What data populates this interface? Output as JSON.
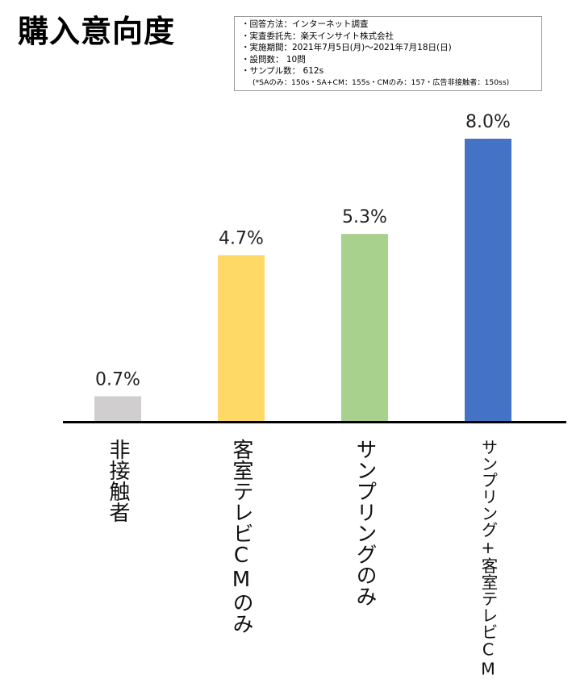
{
  "title": "購入意向度",
  "survey_info": {
    "lines": [
      "・回答方法：インターネット調査",
      "・実査委託先：楽天インサイト株式会社",
      "・実施期間：2021年7月5日(月)〜2021年7月18日(日)",
      "・設問数： 10問",
      "・サンプル数： 612s"
    ],
    "note": "(*SAのみ：150s・SA+CM：155s・CMのみ：157・広告非接触者：150ss)"
  },
  "chart_data": {
    "type": "bar",
    "title": "購入意向度",
    "categories": [
      "非接触者",
      "客室テレビCMのみ",
      "サンプリングのみ",
      "サンプリング+客室テレビCM"
    ],
    "values": [
      0.7,
      4.7,
      5.3,
      8.0
    ],
    "value_labels": [
      "0.7%",
      "4.7%",
      "5.3%",
      "8.0%"
    ],
    "colors": [
      "#d0cece",
      "#ffd966",
      "#a9d18e",
      "#4472c4"
    ],
    "ylim": [
      0,
      8.0
    ],
    "grid": false,
    "legend": "none"
  }
}
